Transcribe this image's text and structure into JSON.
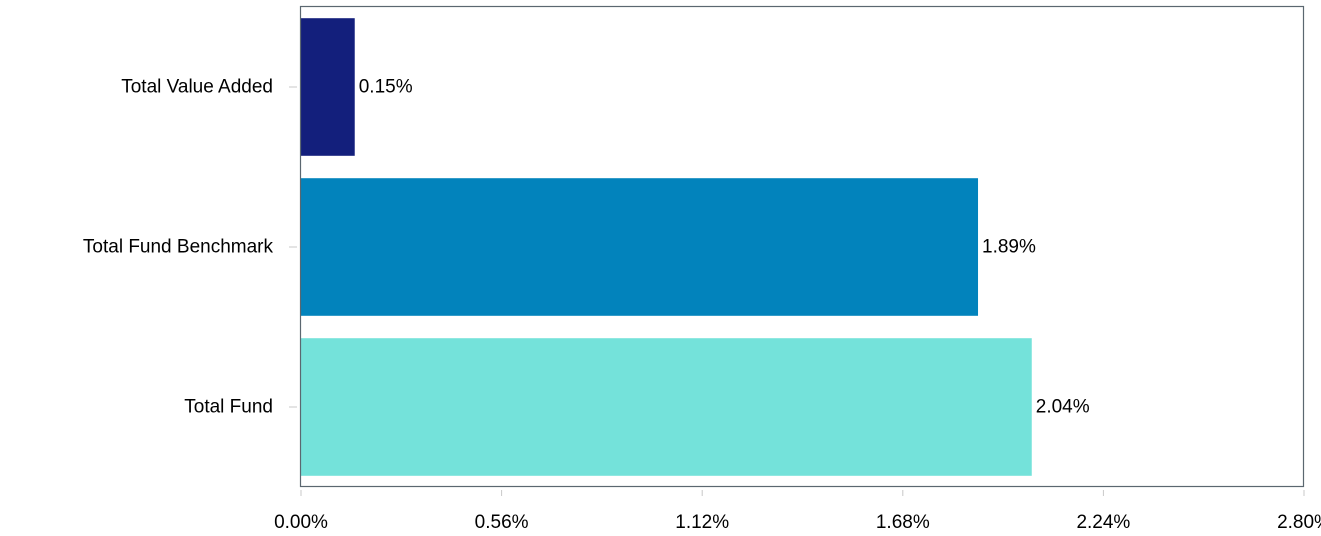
{
  "chart_data": {
    "type": "bar",
    "orientation": "horizontal",
    "categories": [
      "Total Value Added",
      "Total Fund Benchmark",
      "Total Fund"
    ],
    "values": [
      0.15,
      1.89,
      2.04
    ],
    "data_labels": [
      "0.15%",
      "1.89%",
      "2.04%"
    ],
    "colors": [
      "#131f7c",
      "#0283bc",
      "#74e2da"
    ],
    "xlim": [
      0,
      2.8
    ],
    "x_ticks": [
      0,
      0.56,
      1.12,
      1.68,
      2.24,
      2.8
    ],
    "x_tick_labels": [
      "0.00%",
      "0.56%",
      "1.12%",
      "1.68%",
      "2.24%",
      "2.80%"
    ],
    "grid": false,
    "legend": "none",
    "title": "",
    "xlabel": "",
    "ylabel": ""
  }
}
